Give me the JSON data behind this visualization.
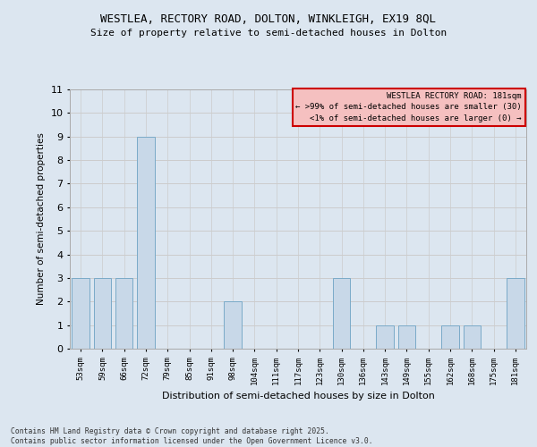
{
  "title_line1": "WESTLEA, RECTORY ROAD, DOLTON, WINKLEIGH, EX19 8QL",
  "title_line2": "Size of property relative to semi-detached houses in Dolton",
  "xlabel": "Distribution of semi-detached houses by size in Dolton",
  "ylabel": "Number of semi-detached properties",
  "categories": [
    "53sqm",
    "59sqm",
    "66sqm",
    "72sqm",
    "79sqm",
    "85sqm",
    "91sqm",
    "98sqm",
    "104sqm",
    "111sqm",
    "117sqm",
    "123sqm",
    "130sqm",
    "136sqm",
    "143sqm",
    "149sqm",
    "155sqm",
    "162sqm",
    "168sqm",
    "175sqm",
    "181sqm"
  ],
  "values": [
    3,
    3,
    3,
    9,
    0,
    0,
    0,
    2,
    0,
    0,
    0,
    0,
    3,
    0,
    1,
    1,
    0,
    1,
    1,
    0,
    3
  ],
  "bar_color": "#c8d8e8",
  "bar_edge_color": "#7aaac8",
  "highlight_bar_index": 20,
  "grid_color": "#cccccc",
  "background_color": "#dce6f0",
  "legend_title": "WESTLEA RECTORY ROAD: 181sqm",
  "legend_line1": "← >99% of semi-detached houses are smaller (30)",
  "legend_line2": "<1% of semi-detached houses are larger (0) →",
  "legend_box_color": "#f5c0c0",
  "legend_border_color": "#cc0000",
  "ylim": [
    0,
    11
  ],
  "yticks": [
    0,
    1,
    2,
    3,
    4,
    5,
    6,
    7,
    8,
    9,
    10,
    11
  ],
  "footnote_line1": "Contains HM Land Registry data © Crown copyright and database right 2025.",
  "footnote_line2": "Contains public sector information licensed under the Open Government Licence v3.0."
}
